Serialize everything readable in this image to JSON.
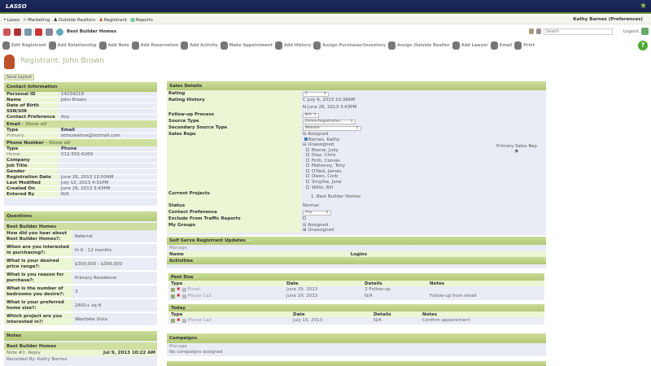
{
  "app": {
    "logo": "LASSO"
  },
  "menu": {
    "items": [
      "Lasso",
      "Marketing",
      "Outside Realtors",
      "Registrant",
      "Reports"
    ],
    "user": "Kathy Barnes (Preferences)"
  },
  "iconrow": {
    "label": "Best Builder Homes"
  },
  "search": {
    "placeholder": "Search",
    "logout": "Logout"
  },
  "toolbar": [
    "Edit Registrant",
    "Add Relationship",
    "Add Note",
    "Add Reservation",
    "Add Activity",
    "Make Appointment",
    "Add History",
    "Assign Purchaser/Inventory",
    "Assign Outside Realtor",
    "Add Lawyer",
    "Email",
    "Print"
  ],
  "page": {
    "title": "Registrant: John Brown",
    "save_layout": "Save Layout"
  },
  "contact": {
    "title": "Contact Information",
    "rows": [
      [
        "Personal ID",
        "14234219"
      ],
      [
        "Name",
        "John Brown"
      ],
      [
        "Date of Birth",
        ""
      ],
      [
        "SSN/SIN",
        ""
      ],
      [
        "Contact Preference",
        "Any"
      ]
    ],
    "email_title": "Email",
    "show_all": "- Show all",
    "email_cols": [
      "Type",
      "Email"
    ],
    "email_row": [
      "Primary:",
      "atmcreative@hotmail.com"
    ],
    "phone_title": "Phone Number",
    "phone_cols": [
      "Type",
      "Phone"
    ],
    "phone_row": [
      "Home:",
      "512-555-6269"
    ],
    "rows2": [
      [
        "Company",
        ""
      ],
      [
        "Job Title",
        ""
      ],
      [
        "Gender",
        ""
      ],
      [
        "Registration Date",
        "June 26, 2013 12:00AM"
      ],
      [
        "Last Modified",
        "July 12, 2013 4:31PM"
      ],
      [
        "Created On",
        "June 26, 2013 3:43PM"
      ],
      [
        "Entered By",
        "N/A"
      ]
    ]
  },
  "questions": {
    "title": "Questions",
    "group": "Best Builder Homes",
    "rows": [
      [
        "How did you hear about Best Builder Homes?:",
        "Referral"
      ],
      [
        "When are you interested in purchasing?:",
        "In 6 - 12 months"
      ],
      [
        "What is your desired price range?:",
        "$300,000 - $399,000"
      ],
      [
        "What is you reason for purchase?:",
        "Primary Residence"
      ],
      [
        "What is the number of bedrooms you desire?:",
        "3"
      ],
      [
        "What is your preferred home size?:",
        "2400+ sq ft"
      ],
      [
        "Which project are you interested in?:",
        "Westlake Vista"
      ]
    ]
  },
  "notes": {
    "title": "Notes",
    "group": "Best Builder Homes",
    "note": "Note #1: Reply",
    "date": "Jul 9, 2013 10:22 AM",
    "recorded": "Recorded By: Kathy Barnes"
  },
  "sales": {
    "title": "Sales Details",
    "rating_label": "Rating",
    "rating": "C",
    "history_label": "Rating History",
    "history": [
      "C  July 9, 2013 10:38AM",
      "N  June 26, 2013 3:43PM"
    ],
    "followup_label": "Follow-up Process",
    "followup": "N/A",
    "source_label": "Source Type",
    "source": "Online Registration",
    "secondary_label": "Secondary Source Type",
    "secondary": "Website",
    "reps_label": "Sales Reps",
    "assigned": "Assigned",
    "assigned_reps": [
      "Barnes, Kathy"
    ],
    "unassigned": "Unassigned",
    "unassigned_reps": [
      "Boone, Judy",
      "Diaz, Chris",
      "Firth, Connie",
      "Mahoney, Tony",
      "O'Neil, James",
      "Owen, Corb",
      "Smythe, Jane",
      "Willis, Bill"
    ],
    "primary_rep": "Primary Sales Rep",
    "projects_label": "Current Projects",
    "project": "1.  Best Builder Homes",
    "status_label": "Status",
    "status": "Normal",
    "contact_pref_label": "Contact Preference",
    "contact_pref": "Any",
    "exclude_label": "Exclude From Traffic Reports",
    "groups_label": "My Groups",
    "groups": [
      "Assigned",
      "Unassigned"
    ]
  },
  "selfserve": {
    "title": "Self Serve Registrant Updates",
    "manage": "Manage",
    "cols": [
      "Name",
      "Logins"
    ]
  },
  "activities": {
    "title": "Activities",
    "pastdue": {
      "title": "Past Due",
      "cols": [
        "Type",
        "Date",
        "Details",
        "Notes"
      ],
      "rows": [
        [
          "Email",
          "June 29, 2013",
          "2-Follow-up",
          ""
        ],
        [
          "Phone Call",
          "June 29, 2013",
          "N/A",
          "Follow-up from email"
        ]
      ]
    },
    "today": {
      "title": "Today",
      "cols": [
        "Type",
        "Date",
        "Details",
        "Notes"
      ],
      "rows": [
        [
          "Phone Call",
          "July 15, 2013",
          "N/A",
          "Confirm appointment"
        ]
      ]
    }
  },
  "campaigns": {
    "title": "Campaigns",
    "manage": "Manage",
    "empty": "No campaigns assigned"
  },
  "colors": {
    "navy": "#1b2a5e",
    "header_green": "#b3c978",
    "panel_bg": "#e9ecf5"
  }
}
